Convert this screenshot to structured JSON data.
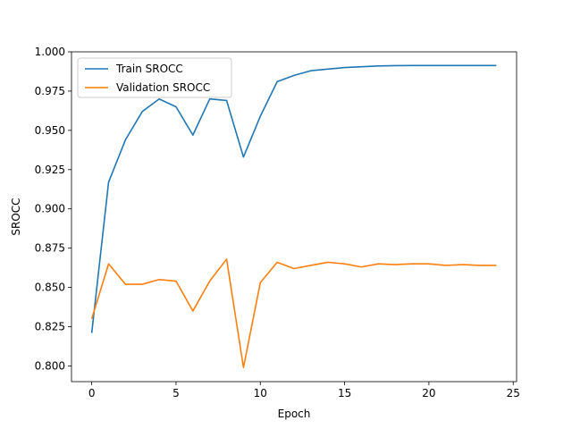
{
  "chart_data": {
    "type": "line",
    "title": "",
    "xlabel": "Epoch",
    "ylabel": "SROCC",
    "xlim": [
      -1.2,
      25.2
    ],
    "ylim": [
      0.79,
      1.0
    ],
    "xticks": [
      0,
      5,
      10,
      15,
      20,
      25
    ],
    "yticks": [
      0.8,
      0.825,
      0.85,
      0.875,
      0.9,
      0.925,
      0.95,
      0.975,
      1.0
    ],
    "xtick_labels": [
      "0",
      "5",
      "10",
      "15",
      "20",
      "25"
    ],
    "ytick_labels": [
      "0.800",
      "0.825",
      "0.850",
      "0.875",
      "0.900",
      "0.925",
      "0.950",
      "0.975",
      "1.000"
    ],
    "grid": false,
    "legend": "upper-left",
    "x": [
      0,
      1,
      2,
      3,
      4,
      5,
      6,
      7,
      8,
      9,
      10,
      11,
      12,
      13,
      14,
      15,
      16,
      17,
      18,
      19,
      20,
      21,
      22,
      23,
      24
    ],
    "series": [
      {
        "name": "Train SROCC",
        "color": "#1f77b4",
        "values": [
          0.821,
          0.917,
          0.944,
          0.962,
          0.97,
          0.965,
          0.947,
          0.97,
          0.969,
          0.933,
          0.959,
          0.981,
          0.985,
          0.988,
          0.989,
          0.99,
          0.9905,
          0.991,
          0.9912,
          0.9913,
          0.9913,
          0.9913,
          0.9913,
          0.9913,
          0.9913
        ]
      },
      {
        "name": "Validation SROCC",
        "color": "#ff7f0e",
        "values": [
          0.83,
          0.865,
          0.852,
          0.852,
          0.855,
          0.854,
          0.835,
          0.854,
          0.868,
          0.799,
          0.853,
          0.866,
          0.862,
          0.864,
          0.866,
          0.865,
          0.863,
          0.865,
          0.8645,
          0.865,
          0.865,
          0.864,
          0.8645,
          0.864,
          0.864
        ]
      }
    ]
  }
}
